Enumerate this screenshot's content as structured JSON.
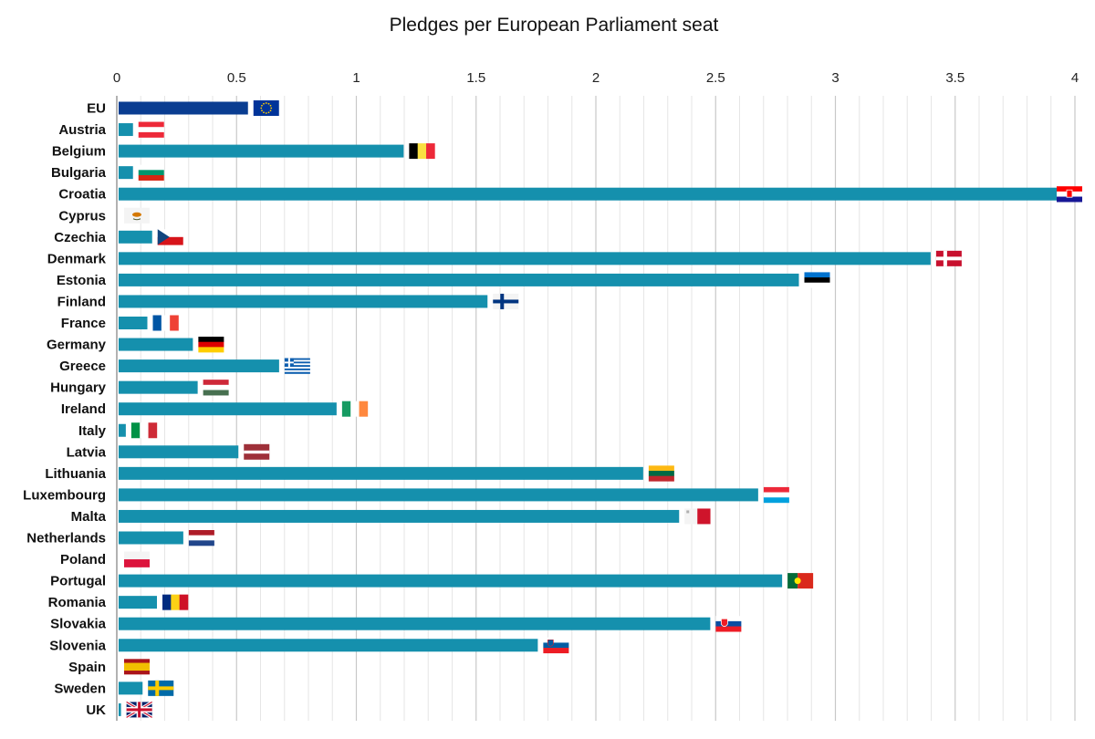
{
  "chart_data": {
    "type": "bar",
    "orientation": "horizontal",
    "title": "Pledges per European Parliament seat",
    "xlabel": "",
    "ylabel": "",
    "xlim": [
      0,
      4
    ],
    "x_ticks": [
      "0",
      "0.5",
      "1",
      "1.5",
      "2",
      "2.5",
      "3",
      "3.5",
      "4"
    ],
    "x_tick_values": [
      0,
      0.5,
      1,
      1.5,
      2,
      2.5,
      3,
      3.5,
      4
    ],
    "x_axis_position": "top",
    "grid": true,
    "legend": "none",
    "categories": [
      "EU",
      "Austria",
      "Belgium",
      "Bulgaria",
      "Croatia",
      "Cyprus",
      "Czechia",
      "Denmark",
      "Estonia",
      "Finland",
      "France",
      "Germany",
      "Greece",
      "Hungary",
      "Ireland",
      "Italy",
      "Latvia",
      "Lithuania",
      "Luxembourg",
      "Malta",
      "Netherlands",
      "Poland",
      "Portugal",
      "Romania",
      "Slovakia",
      "Slovenia",
      "Spain",
      "Sweden",
      "UK"
    ],
    "values": [
      0.54,
      0.06,
      1.19,
      0.06,
      3.92,
      0.0,
      0.14,
      3.39,
      2.84,
      1.54,
      0.12,
      0.31,
      0.67,
      0.33,
      0.91,
      0.03,
      0.5,
      2.19,
      2.67,
      2.34,
      0.27,
      0.0,
      2.77,
      0.16,
      2.47,
      1.75,
      0.0,
      0.1,
      0.01
    ],
    "colors": {
      "eu_bar": "#0a3d91",
      "country_bar": "#1590ad",
      "grid_major": "#c8c8c8",
      "grid_minor": "#e6e6e6",
      "axis": "#999999"
    },
    "flag_icons": [
      "eu-flag",
      "austria-flag",
      "belgium-flag",
      "bulgaria-flag",
      "croatia-flag",
      "cyprus-flag",
      "czechia-flag",
      "denmark-flag",
      "estonia-flag",
      "finland-flag",
      "france-flag",
      "germany-flag",
      "greece-flag",
      "hungary-flag",
      "ireland-flag",
      "italy-flag",
      "latvia-flag",
      "lithuania-flag",
      "luxembourg-flag",
      "malta-flag",
      "netherlands-flag",
      "poland-flag",
      "portugal-flag",
      "romania-flag",
      "slovakia-flag",
      "slovenia-flag",
      "spain-flag",
      "sweden-flag",
      "uk-flag"
    ]
  }
}
